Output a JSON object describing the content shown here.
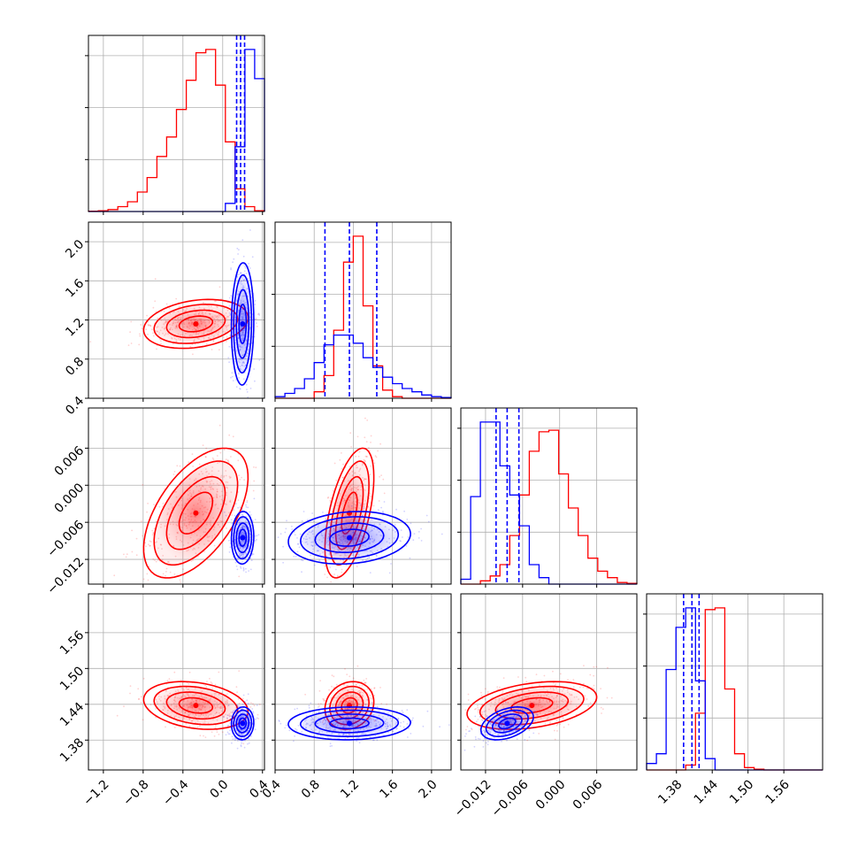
{
  "chart_data": {
    "type": "corner",
    "colors": {
      "series_a": "#ff0000",
      "series_b": "#0000ff"
    },
    "grid": true,
    "parameters": [
      {
        "range": [
          -1.35,
          0.42
        ],
        "ticks": [
          -1.2,
          -0.8,
          -0.4,
          0.0,
          0.4
        ],
        "tick_labels": [
          "−1.2",
          "−0.8",
          "−0.4",
          "0.0",
          "0.4"
        ]
      },
      {
        "range": [
          0.4,
          2.2
        ],
        "ticks": [
          0.4,
          0.8,
          1.2,
          1.6,
          2.0
        ],
        "tick_labels": [
          "0.4",
          "0.8",
          "1.2",
          "1.6",
          "2.0"
        ]
      },
      {
        "range": [
          -0.016,
          0.0125
        ],
        "ticks": [
          -0.012,
          -0.006,
          0.0,
          0.006
        ],
        "tick_labels": [
          "−0.012",
          "−0.006",
          "0.000",
          "0.006"
        ]
      },
      {
        "range": [
          1.33,
          1.625
        ],
        "ticks": [
          1.38,
          1.44,
          1.5,
          1.56
        ],
        "tick_labels": [
          "1.38",
          "1.44",
          "1.50",
          "1.56"
        ]
      }
    ],
    "quantile_lines_blue": [
      [
        0.14,
        0.18,
        0.22
      ],
      [
        0.91,
        1.16,
        1.44
      ],
      [
        -0.0103,
        -0.0085,
        -0.0066
      ],
      [
        1.392,
        1.406,
        1.418
      ]
    ],
    "histograms": [
      {
        "red": [
          0.002,
          0.005,
          0.012,
          0.03,
          0.06,
          0.12,
          0.21,
          0.34,
          0.46,
          0.63,
          0.81,
          0.98,
          1.0,
          0.78,
          0.43,
          0.14,
          0.03,
          0.005
        ],
        "blue": [
          0,
          0,
          0,
          0,
          0,
          0,
          0,
          0,
          0,
          0,
          0,
          0,
          0,
          0,
          0.05,
          0.4,
          1.0,
          0.82
        ]
      },
      {
        "red": [
          0,
          0,
          0,
          0,
          0.04,
          0.14,
          0.42,
          0.84,
          1.0,
          0.57,
          0.2,
          0.05,
          0.01,
          0,
          0,
          0,
          0,
          0
        ],
        "blue": [
          0.01,
          0.03,
          0.06,
          0.12,
          0.22,
          0.33,
          0.39,
          0.39,
          0.34,
          0.25,
          0.19,
          0.13,
          0.09,
          0.06,
          0.04,
          0.02,
          0.01,
          0.005
        ]
      },
      {
        "red": [
          0,
          0,
          0.02,
          0.05,
          0.12,
          0.3,
          0.55,
          0.82,
          0.94,
          0.95,
          0.68,
          0.47,
          0.3,
          0.16,
          0.08,
          0.04,
          0.01,
          0.005
        ],
        "blue": [
          0.03,
          0.54,
          1.0,
          1.0,
          0.73,
          0.55,
          0.36,
          0.12,
          0.04,
          0,
          0,
          0,
          0,
          0,
          0,
          0,
          0,
          0
        ]
      },
      {
        "red": [
          0,
          0,
          0,
          0,
          0.03,
          0.35,
          0.99,
          1.0,
          0.5,
          0.1,
          0.015,
          0.005,
          0,
          0,
          0,
          0,
          0,
          0
        ],
        "blue": [
          0.04,
          0.1,
          0.62,
          0.88,
          1.0,
          0.55,
          0.07,
          0,
          0,
          0,
          0,
          0,
          0,
          0,
          0,
          0,
          0,
          0
        ]
      }
    ],
    "distributions": {
      "red": {
        "mean": [
          -0.27,
          1.16,
          -0.0045,
          1.438
        ],
        "sd": [
          0.21,
          0.1,
          0.0042,
          0.016
        ],
        "corr": [
          [
            1,
            0.25,
            0.55,
            -0.25
          ],
          [
            0.25,
            1,
            0.55,
            0.15
          ],
          [
            0.55,
            0.55,
            1,
            0.35
          ],
          [
            -0.25,
            0.15,
            0.35,
            1
          ]
        ]
      },
      "blue": {
        "mean": [
          0.2,
          1.16,
          -0.0085,
          1.408
        ],
        "sd": [
          0.045,
          0.25,
          0.0017,
          0.011
        ],
        "corr": [
          [
            1,
            0.05,
            0.05,
            0.05
          ],
          [
            0.05,
            1,
            0.15,
            0.05
          ],
          [
            0.05,
            0.15,
            1,
            0.4
          ],
          [
            0.05,
            0.05,
            0.4,
            1
          ]
        ]
      }
    }
  }
}
